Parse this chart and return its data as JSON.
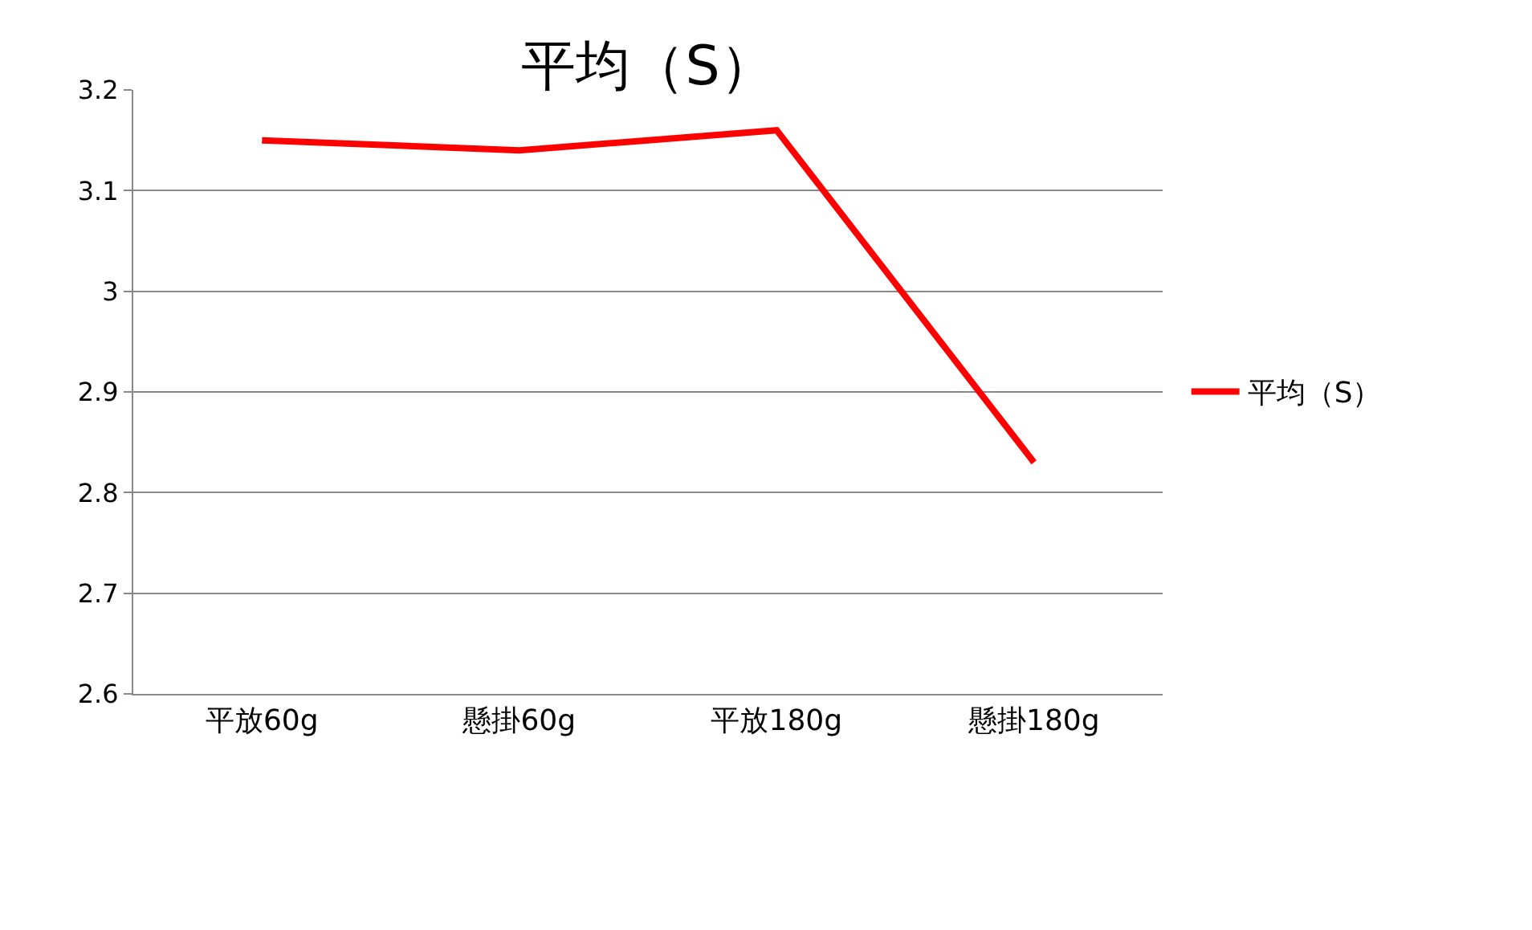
{
  "chart_data": {
    "type": "line",
    "title": "平均（S）",
    "categories": [
      "平放60g",
      "懸掛60g",
      "平放180g",
      "懸掛180g"
    ],
    "series": [
      {
        "name": "平均（S）",
        "color": "#ff0000",
        "values": [
          3.15,
          3.14,
          3.16,
          2.83
        ]
      }
    ],
    "ylim": [
      2.6,
      3.2
    ],
    "yticks": [
      2.6,
      2.7,
      2.8,
      2.9,
      3,
      3.1,
      3.2
    ],
    "grid": "y",
    "legend": "right",
    "marker": "none",
    "line_style": "solid"
  }
}
